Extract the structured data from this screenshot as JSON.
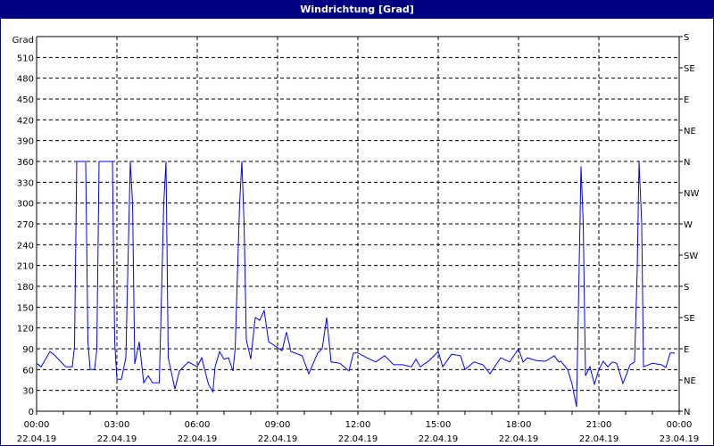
{
  "window": {
    "title": "Windrichtung [Grad]"
  },
  "chart_data": {
    "type": "line",
    "title": "Windrichtung [Grad]",
    "ylabel": "Grad",
    "ylim": [
      0,
      540
    ],
    "yticks": [
      0,
      30,
      60,
      90,
      120,
      150,
      180,
      210,
      240,
      270,
      300,
      330,
      360,
      390,
      420,
      450,
      480,
      510
    ],
    "y2ticks": [
      "N",
      "NE",
      "E",
      "SE",
      "S",
      "SW",
      "W",
      "NW",
      "N",
      "NE",
      "E",
      "SE",
      "S"
    ],
    "xticks": [
      {
        "time": "00:00",
        "date": "22.04.19"
      },
      {
        "time": "03:00",
        "date": "22.04.19"
      },
      {
        "time": "06:00",
        "date": "22.04.19"
      },
      {
        "time": "09:00",
        "date": "22.04.19"
      },
      {
        "time": "12:00",
        "date": "22.04.19"
      },
      {
        "time": "15:00",
        "date": "22.04.19"
      },
      {
        "time": "18:00",
        "date": "22.04.19"
      },
      {
        "time": "21:00",
        "date": "22.04.19"
      },
      {
        "time": "00:00",
        "date": "23.04.19"
      }
    ],
    "xlim": [
      "22.04.19 00:00",
      "23.04.19 00:00"
    ],
    "grid": true,
    "line_color": "#0000ff",
    "series": [
      {
        "points": [
          [
            "00:00",
            69
          ],
          [
            "00:10",
            64
          ],
          [
            "00:30",
            86
          ],
          [
            "00:40",
            81
          ],
          [
            "01:05",
            64
          ],
          [
            "01:20",
            64
          ],
          [
            "01:25",
            94
          ],
          [
            "01:30",
            360
          ],
          [
            "01:50",
            360
          ],
          [
            "01:55",
            100
          ],
          [
            "02:00",
            60
          ],
          [
            "02:10",
            60
          ],
          [
            "02:15",
            90
          ],
          [
            "02:20",
            360
          ],
          [
            "02:50",
            360
          ],
          [
            "02:55",
            100
          ],
          [
            "03:00",
            46
          ],
          [
            "03:10",
            46
          ],
          [
            "03:20",
            77
          ],
          [
            "03:30",
            360
          ],
          [
            "03:35",
            300
          ],
          [
            "03:40",
            68
          ],
          [
            "03:50",
            100
          ],
          [
            "04:00",
            41
          ],
          [
            "04:10",
            51
          ],
          [
            "04:20",
            41
          ],
          [
            "04:35",
            41
          ],
          [
            "04:45",
            300
          ],
          [
            "04:50",
            360
          ],
          [
            "04:55",
            77
          ],
          [
            "05:10",
            32
          ],
          [
            "05:20",
            58
          ],
          [
            "05:40",
            71
          ],
          [
            "06:00",
            64
          ],
          [
            "06:10",
            77
          ],
          [
            "06:25",
            39
          ],
          [
            "06:35",
            28
          ],
          [
            "06:40",
            64
          ],
          [
            "06:50",
            86
          ],
          [
            "07:00",
            75
          ],
          [
            "07:10",
            77
          ],
          [
            "07:20",
            58
          ],
          [
            "07:25",
            90
          ],
          [
            "07:35",
            300
          ],
          [
            "07:40",
            360
          ],
          [
            "07:45",
            270
          ],
          [
            "07:50",
            103
          ],
          [
            "08:00",
            75
          ],
          [
            "08:10",
            135
          ],
          [
            "08:20",
            131
          ],
          [
            "08:30",
            145
          ],
          [
            "08:40",
            100
          ],
          [
            "08:50",
            96
          ],
          [
            "09:10",
            87
          ],
          [
            "09:20",
            114
          ],
          [
            "09:30",
            86
          ],
          [
            "09:55",
            80
          ],
          [
            "10:10",
            54
          ],
          [
            "10:30",
            84
          ],
          [
            "10:40",
            90
          ],
          [
            "10:50",
            135
          ],
          [
            "11:00",
            71
          ],
          [
            "11:20",
            69
          ],
          [
            "11:40",
            58
          ],
          [
            "11:50",
            84
          ],
          [
            "12:00",
            84
          ],
          [
            "12:20",
            77
          ],
          [
            "12:40",
            71
          ],
          [
            "13:00",
            80
          ],
          [
            "13:20",
            67
          ],
          [
            "13:40",
            67
          ],
          [
            "14:00",
            64
          ],
          [
            "14:10",
            75
          ],
          [
            "14:20",
            64
          ],
          [
            "14:40",
            73
          ],
          [
            "15:00",
            86
          ],
          [
            "15:10",
            64
          ],
          [
            "15:30",
            82
          ],
          [
            "15:50",
            80
          ],
          [
            "16:00",
            60
          ],
          [
            "16:20",
            71
          ],
          [
            "16:40",
            67
          ],
          [
            "16:56",
            54
          ],
          [
            "17:20",
            77
          ],
          [
            "17:40",
            71
          ],
          [
            "18:00",
            90
          ],
          [
            "18:10",
            71
          ],
          [
            "18:20",
            77
          ],
          [
            "18:40",
            73
          ],
          [
            "19:00",
            72
          ],
          [
            "19:20",
            80
          ],
          [
            "19:30",
            71
          ],
          [
            "19:35",
            72
          ],
          [
            "19:50",
            60
          ],
          [
            "20:00",
            39
          ],
          [
            "20:10",
            6
          ],
          [
            "20:20",
            353
          ],
          [
            "20:25",
            270
          ],
          [
            "20:30",
            51
          ],
          [
            "20:40",
            64
          ],
          [
            "20:50",
            39
          ],
          [
            "21:00",
            60
          ],
          [
            "21:10",
            72
          ],
          [
            "21:20",
            64
          ],
          [
            "21:30",
            71
          ],
          [
            "21:40",
            69
          ],
          [
            "21:54",
            40
          ],
          [
            "22:10",
            67
          ],
          [
            "22:20",
            71
          ],
          [
            "22:26",
            206
          ],
          [
            "22:30",
            360
          ],
          [
            "22:36",
            270
          ],
          [
            "22:40",
            64
          ],
          [
            "23:00",
            69
          ],
          [
            "23:20",
            67
          ],
          [
            "23:30",
            63
          ],
          [
            "23:40",
            84
          ],
          [
            "23:50",
            84
          ]
        ]
      }
    ]
  }
}
